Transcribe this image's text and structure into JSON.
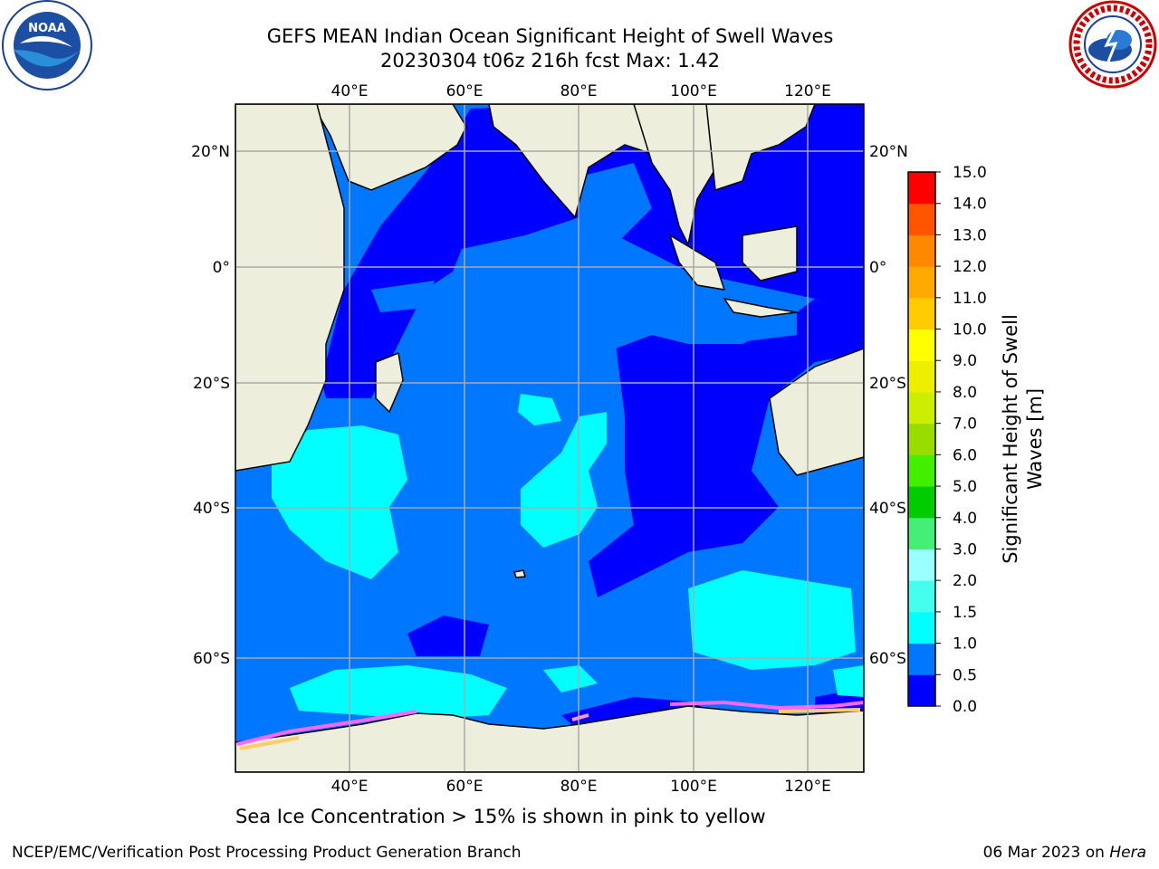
{
  "title": {
    "line1": "GEFS MEAN Indian Ocean Significant Height of Swell Waves",
    "line2": "20230304 t06z 216h fcst   Max: 1.42"
  },
  "axes": {
    "lon_labels": [
      "40°E",
      "60°E",
      "80°E",
      "100°E",
      "120°E"
    ],
    "lat_labels_left": [
      "20°N",
      "0°",
      "20°S",
      "40°S",
      "60°S"
    ],
    "lat_labels_right": [
      "20°N",
      "0°",
      "20°S",
      "40°S",
      "60°S"
    ]
  },
  "colorbar": {
    "label_line1": "Significant Height of Swell",
    "label_line2": "Waves [m]",
    "ticks": [
      "0.0",
      "0.5",
      "1.0",
      "1.5",
      "2.0",
      "3.0",
      "4.0",
      "5.0",
      "6.0",
      "7.0",
      "8.0",
      "9.0",
      "10.0",
      "11.0",
      "12.0",
      "13.0",
      "14.0",
      "15.0"
    ],
    "colors": [
      "#0000ff",
      "#0077ff",
      "#00ffff",
      "#44ffee",
      "#99ffff",
      "#44ee77",
      "#00cc00",
      "#44ee00",
      "#99dd00",
      "#ccee00",
      "#eeee00",
      "#ffff00",
      "#ffcc00",
      "#ffaa00",
      "#ff8800",
      "#ff5500",
      "#ff0000"
    ]
  },
  "caption": "Sea Ice Concentration > 15% is shown in pink to yellow",
  "footer": {
    "left": "NCEP/EMC/Verification Post Processing Product Generation Branch",
    "date": "06 Mar 2023 on ",
    "host": "Hera"
  },
  "logos": {
    "noaa": "NOAA",
    "nws": "NATIONAL WEATHER SERVICE"
  }
}
